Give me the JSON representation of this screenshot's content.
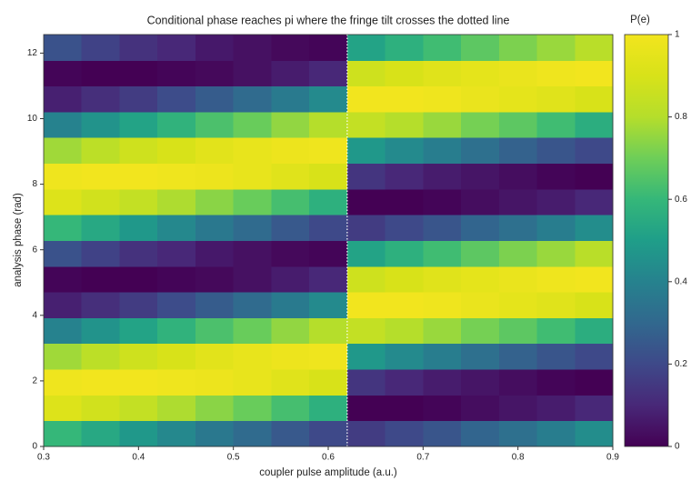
{
  "chart_data": {
    "type": "heatmap",
    "title": "Conditional phase reaches pi where the fringe tilt crosses the dotted line",
    "x_label": "coupler pulse amplitude (a.u.)",
    "y_label": "analysis phase (rad)",
    "xlim": [
      0.3,
      0.9
    ],
    "ylim": [
      0,
      12.566
    ],
    "xticks": [
      0.3,
      0.4,
      0.5,
      0.6,
      0.7,
      0.8,
      0.9
    ],
    "yticks": [
      0,
      2,
      4,
      6,
      8,
      10,
      12
    ],
    "x_bins": [
      0.3,
      0.34,
      0.38,
      0.42,
      0.46,
      0.5,
      0.54,
      0.58,
      0.62,
      0.66,
      0.7,
      0.74,
      0.78,
      0.82,
      0.86,
      0.9
    ],
    "y_bins": [
      0,
      0.785,
      1.571,
      2.356,
      3.142,
      3.927,
      4.712,
      5.498,
      6.283,
      7.069,
      7.854,
      8.639,
      9.425,
      10.21,
      10.996,
      11.781,
      12.566
    ],
    "z": [
      [
        0.6,
        0.54,
        0.48,
        0.42,
        0.36,
        0.31,
        0.25,
        0.2,
        0.16,
        0.2,
        0.24,
        0.29,
        0.33,
        0.38,
        0.44
      ],
      [
        0.92,
        0.88,
        0.84,
        0.79,
        0.74,
        0.69,
        0.63,
        0.57,
        0.0,
        0.0,
        0.01,
        0.03,
        0.05,
        0.07,
        0.1
      ],
      [
        0.99,
        1.0,
        1.0,
        0.99,
        0.98,
        0.96,
        0.93,
        0.9,
        0.14,
        0.1,
        0.07,
        0.05,
        0.03,
        0.01,
        0.0
      ],
      [
        0.77,
        0.82,
        0.87,
        0.9,
        0.94,
        0.96,
        0.98,
        0.99,
        0.48,
        0.43,
        0.38,
        0.33,
        0.28,
        0.24,
        0.2
      ],
      [
        0.4,
        0.46,
        0.52,
        0.58,
        0.64,
        0.69,
        0.75,
        0.8,
        0.84,
        0.8,
        0.76,
        0.71,
        0.67,
        0.62,
        0.56
      ],
      [
        0.08,
        0.12,
        0.16,
        0.21,
        0.26,
        0.31,
        0.37,
        0.43,
        1.0,
        1.0,
        0.99,
        0.97,
        0.95,
        0.93,
        0.9
      ],
      [
        0.01,
        0.0,
        0.0,
        0.01,
        0.02,
        0.04,
        0.07,
        0.1,
        0.87,
        0.9,
        0.93,
        0.95,
        0.97,
        0.99,
        1.0
      ],
      [
        0.23,
        0.18,
        0.13,
        0.1,
        0.06,
        0.04,
        0.02,
        0.01,
        0.52,
        0.57,
        0.62,
        0.67,
        0.72,
        0.76,
        0.81
      ],
      [
        0.6,
        0.54,
        0.48,
        0.42,
        0.36,
        0.31,
        0.25,
        0.2,
        0.16,
        0.2,
        0.24,
        0.29,
        0.33,
        0.38,
        0.44
      ],
      [
        0.92,
        0.88,
        0.84,
        0.79,
        0.74,
        0.69,
        0.63,
        0.57,
        0.0,
        0.0,
        0.01,
        0.03,
        0.05,
        0.07,
        0.1
      ],
      [
        0.99,
        1.0,
        1.0,
        0.99,
        0.98,
        0.96,
        0.93,
        0.9,
        0.14,
        0.1,
        0.07,
        0.05,
        0.03,
        0.01,
        0.0
      ],
      [
        0.77,
        0.82,
        0.87,
        0.9,
        0.94,
        0.96,
        0.98,
        0.99,
        0.48,
        0.43,
        0.38,
        0.33,
        0.28,
        0.24,
        0.2
      ],
      [
        0.4,
        0.46,
        0.52,
        0.58,
        0.64,
        0.69,
        0.75,
        0.8,
        0.84,
        0.8,
        0.76,
        0.71,
        0.67,
        0.62,
        0.56
      ],
      [
        0.08,
        0.12,
        0.16,
        0.21,
        0.26,
        0.31,
        0.37,
        0.43,
        1.0,
        1.0,
        0.99,
        0.97,
        0.95,
        0.93,
        0.9
      ],
      [
        0.01,
        0.0,
        0.0,
        0.01,
        0.02,
        0.04,
        0.07,
        0.1,
        0.87,
        0.9,
        0.93,
        0.95,
        0.97,
        0.99,
        1.0
      ],
      [
        0.23,
        0.18,
        0.13,
        0.1,
        0.06,
        0.04,
        0.02,
        0.01,
        0.52,
        0.57,
        0.62,
        0.67,
        0.72,
        0.76,
        0.81
      ]
    ],
    "colormap": "viridis",
    "vline": {
      "x": 0.62,
      "color": "#ffffff",
      "style": "dotted"
    },
    "colorbar": {
      "label": "P(e)",
      "lim": [
        0,
        1
      ],
      "ticks": [
        0,
        0.2,
        0.4,
        0.6,
        0.8,
        1
      ]
    }
  }
}
